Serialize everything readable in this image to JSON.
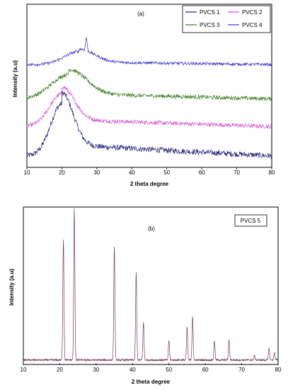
{
  "chart_data": [
    {
      "type": "line",
      "panel_label": "(a)",
      "xlabel": "2 theta degree",
      "ylabel": "Intensity (a.u)",
      "xlim": [
        10,
        80
      ],
      "xticks": [
        10,
        20,
        30,
        40,
        50,
        60,
        70,
        80
      ],
      "legend_position": "top-right",
      "series": [
        {
          "name": "PVCS 1",
          "color": "#1f1f7a",
          "baseline": 0.07,
          "peaks": [
            {
              "x": 20,
              "h": 0.32,
              "w": 4.5
            }
          ],
          "noise": 0.035
        },
        {
          "name": "PVCS 2",
          "color": "#d64bd6",
          "baseline": 0.25,
          "peaks": [
            {
              "x": 20,
              "h": 0.2,
              "w": 5
            }
          ],
          "noise": 0.025
        },
        {
          "name": "PVCS 3",
          "color": "#3a7a1e",
          "baseline": 0.42,
          "peaks": [
            {
              "x": 22,
              "h": 0.15,
              "w": 7
            }
          ],
          "noise": 0.025
        },
        {
          "name": "PVCS 4",
          "color": "#3b2fc9",
          "baseline": 0.63,
          "peaks": [
            {
              "x": 25,
              "h": 0.08,
              "w": 6
            },
            {
              "x": 27,
              "h": 0.08,
              "w": 0.3
            }
          ],
          "noise": 0.018
        }
      ]
    },
    {
      "type": "line",
      "panel_label": "(b)",
      "legend_label": "PVCS 5",
      "xlabel": "2 theta degree",
      "ylabel": "Intensity (a.u)",
      "xlim": [
        10,
        80
      ],
      "xticks": [
        10,
        20,
        30,
        40,
        50,
        60,
        70,
        80
      ],
      "legend_position": "top-right",
      "series": [
        {
          "name": "PVCS 5",
          "color": "#7a3b5e",
          "baseline": 0.02,
          "peaks": [
            {
              "x": 21.0,
              "h": 0.8
            },
            {
              "x": 24.0,
              "h": 1.0
            },
            {
              "x": 35.0,
              "h": 0.75
            },
            {
              "x": 41.0,
              "h": 0.58
            },
            {
              "x": 43.0,
              "h": 0.25
            },
            {
              "x": 50.0,
              "h": 0.13
            },
            {
              "x": 55.0,
              "h": 0.22
            },
            {
              "x": 56.5,
              "h": 0.29
            },
            {
              "x": 62.5,
              "h": 0.13
            },
            {
              "x": 66.5,
              "h": 0.13
            },
            {
              "x": 73.5,
              "h": 0.03
            },
            {
              "x": 77.5,
              "h": 0.08
            },
            {
              "x": 79.0,
              "h": 0.05
            }
          ]
        }
      ]
    }
  ]
}
